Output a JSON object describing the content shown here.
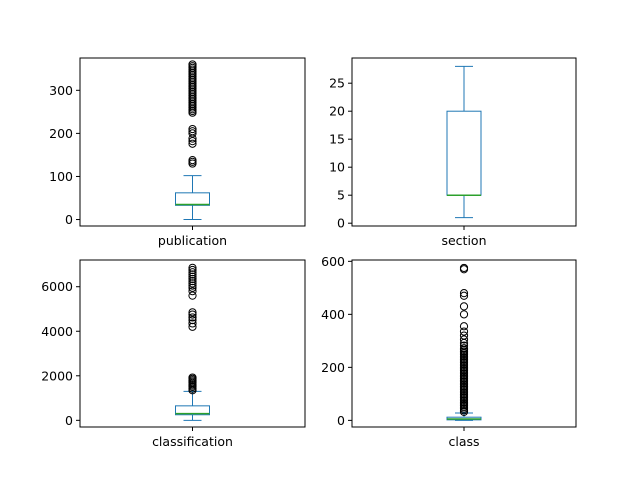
{
  "colors": {
    "box": "#1f77b4",
    "median": "#2ca02c",
    "flier": "#000000",
    "axes": "#000000",
    "background": "#ffffff"
  },
  "chart_data": [
    {
      "type": "box",
      "category": "publication",
      "ylim": [
        -15,
        375
      ],
      "yticks": [
        0,
        100,
        200,
        300
      ],
      "whisker_low": 0,
      "q1": 33,
      "median": 35,
      "q3": 62,
      "whisker_high": 102,
      "fliers": [
        130,
        134,
        138,
        176,
        182,
        188,
        200,
        205,
        210,
        248,
        252,
        256,
        260,
        264,
        268,
        272,
        276,
        280,
        284,
        288,
        292,
        296,
        300,
        304,
        308,
        312,
        316,
        320,
        324,
        328,
        332,
        336,
        340,
        344,
        348,
        352,
        356,
        360
      ]
    },
    {
      "type": "box",
      "category": "section",
      "ylim": [
        -0.5,
        29.5
      ],
      "yticks": [
        0,
        5,
        10,
        15,
        20,
        25
      ],
      "whisker_low": 1,
      "q1": 5,
      "median": 5,
      "q3": 20,
      "whisker_high": 28,
      "fliers": []
    },
    {
      "type": "box",
      "category": "classification",
      "ylim": [
        -300,
        7200
      ],
      "yticks": [
        0,
        2000,
        4000,
        6000
      ],
      "whisker_low": 0,
      "q1": 250,
      "median": 300,
      "q3": 650,
      "whisker_high": 1300,
      "fliers": [
        1350,
        1420,
        1500,
        1560,
        1620,
        1680,
        1740,
        1800,
        1860,
        1920,
        4200,
        4350,
        4500,
        4620,
        4750,
        4850,
        5600,
        5800,
        5950,
        6050,
        6150,
        6250,
        6350,
        6450,
        6550,
        6650,
        6750,
        6850
      ]
    },
    {
      "type": "box",
      "category": "class",
      "ylim": [
        -25,
        605
      ],
      "yticks": [
        0,
        200,
        400,
        600
      ],
      "whisker_low": 0,
      "q1": 2,
      "median": 5,
      "q3": 12,
      "whisker_high": 28,
      "fliers": [
        32,
        38,
        44,
        50,
        56,
        62,
        68,
        74,
        80,
        86,
        92,
        98,
        104,
        110,
        116,
        122,
        128,
        134,
        140,
        146,
        152,
        158,
        164,
        170,
        176,
        182,
        188,
        194,
        200,
        206,
        212,
        218,
        224,
        230,
        236,
        242,
        248,
        254,
        260,
        266,
        272,
        282,
        292,
        305,
        320,
        335,
        355,
        400,
        430,
        470,
        480,
        570,
        575
      ]
    }
  ]
}
